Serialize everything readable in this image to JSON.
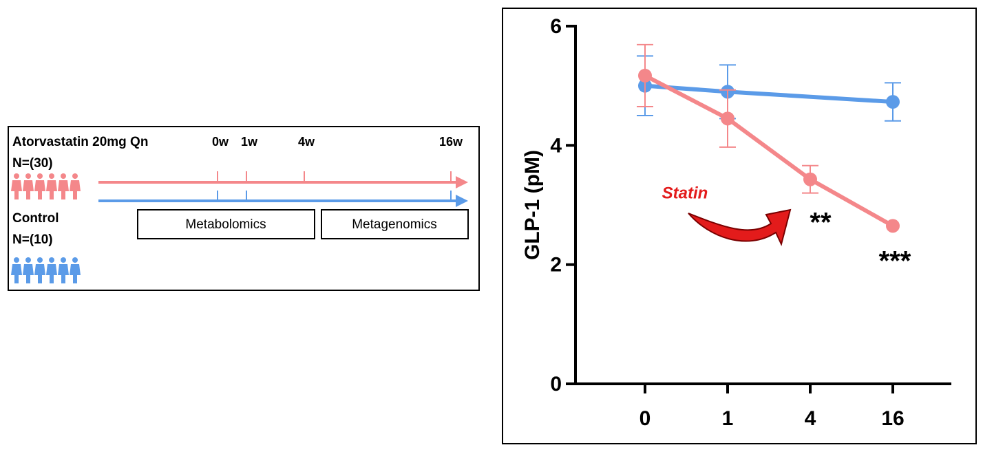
{
  "diagram": {
    "groups": [
      {
        "label": "Atorvastatin 20mg Qn",
        "n": "N=(30)"
      },
      {
        "label": "Control",
        "n": "N=(10)"
      }
    ],
    "timepoints": [
      "0w",
      "1w",
      "4w",
      "16w"
    ],
    "assays": [
      "Metabolomics",
      "Metagenomics"
    ]
  },
  "chart_data": {
    "type": "line",
    "y_label": "GLP-1 (pM)",
    "categories": [
      "0",
      "1",
      "4",
      "16"
    ],
    "ylim": [
      0,
      6
    ],
    "yticks": [
      0,
      2,
      4,
      6
    ],
    "series": [
      {
        "color": "#5b9be8",
        "x": [
          "0",
          "1",
          "16"
        ],
        "values": [
          5.0,
          4.9,
          4.73
        ],
        "errors": [
          0.5,
          0.45,
          0.32
        ]
      },
      {
        "color": "#f4878a",
        "x": [
          "0",
          "1",
          "4",
          "16"
        ],
        "values": [
          5.17,
          4.45,
          3.43,
          2.65
        ],
        "errors": [
          0.52,
          0.48,
          0.23,
          null
        ]
      }
    ],
    "annotations": [
      "Statin",
      "**",
      "***"
    ]
  }
}
